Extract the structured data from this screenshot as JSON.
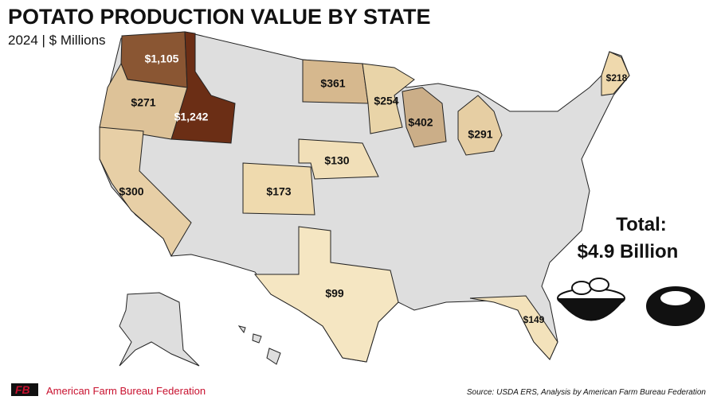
{
  "chart_data": {
    "type": "choropleth",
    "title": "POTATO PRODUCTION VALUE BY STATE",
    "subtitle": "2024 | $ Millions",
    "values": [
      1105,
      1242,
      271,
      300,
      361,
      254,
      402,
      291,
      130,
      173,
      99,
      218,
      149
    ],
    "value_labels": [
      "$1,105",
      "$1,242",
      "$271",
      "$300",
      "$361",
      "$254",
      "$402",
      "$291",
      "$130",
      "$173",
      "$99",
      "$218",
      "$149"
    ],
    "colors": [
      "#8a5633",
      "#6b2e15",
      "#ddc298",
      "#e7cfa6",
      "#d6b88e",
      "#e9d4a8",
      "#cbae88",
      "#e6cea3",
      "#f1dfb8",
      "#efdaae",
      "#f5e6c2",
      "#efd9ad",
      "#f3e2bb"
    ],
    "total_title": "Total:",
    "total_value": "$4.9 Billion",
    "source": "Source: USDA ERS, Analysis by American Farm Bureau Federation",
    "organization": "American Farm Bureau Federation"
  }
}
